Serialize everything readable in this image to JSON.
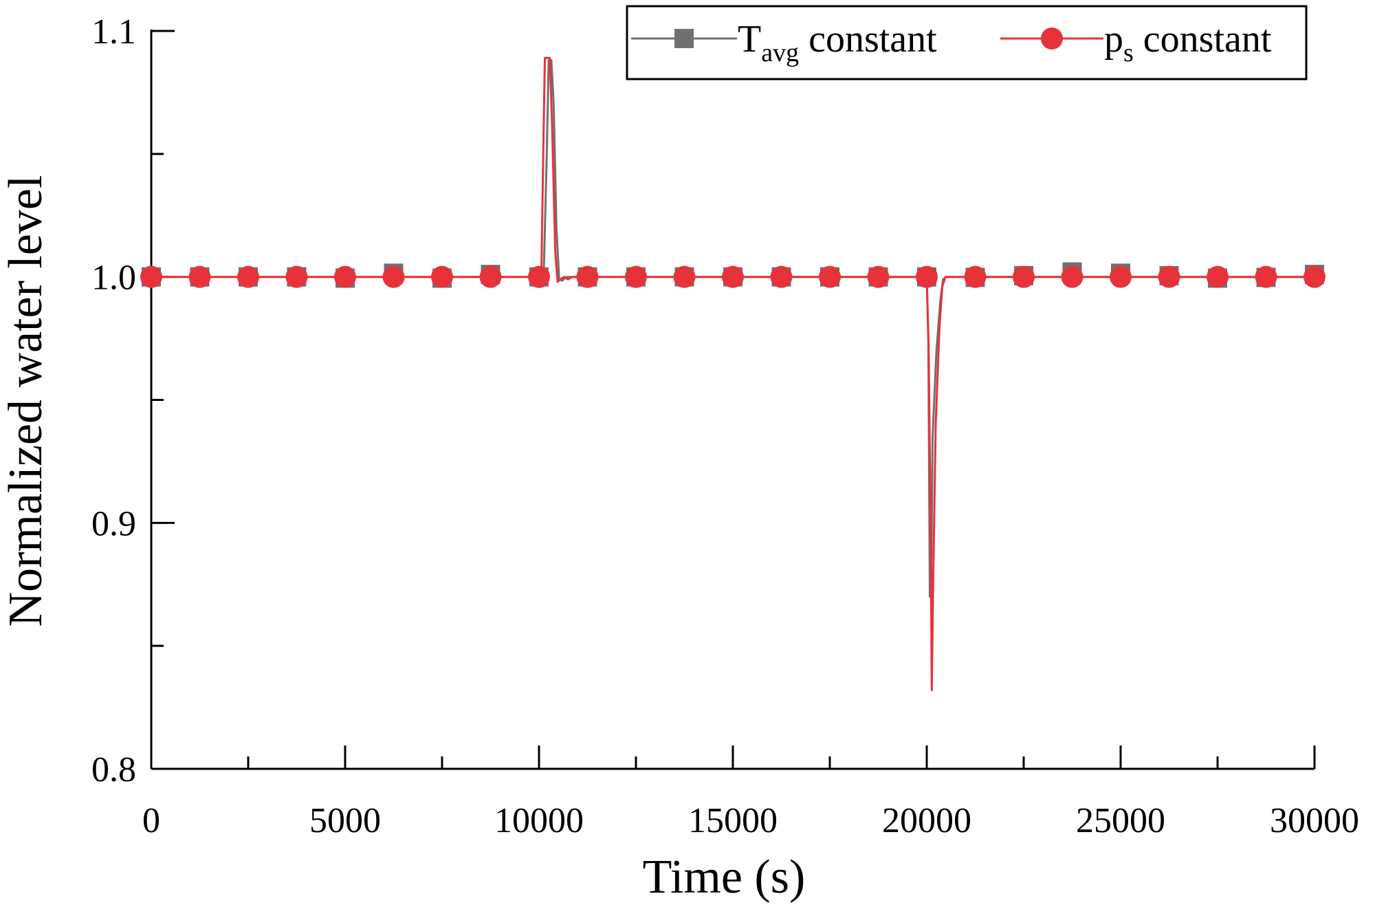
{
  "chart_data": {
    "type": "line",
    "title": "",
    "xlabel": "Time (s)",
    "ylabel": "Normalized water level",
    "xlim": [
      0,
      30000
    ],
    "ylim": [
      0.8,
      1.1
    ],
    "x_ticks": [
      0,
      5000,
      10000,
      15000,
      20000,
      25000,
      30000
    ],
    "x_tick_labels": [
      "0",
      "5000",
      "10000",
      "15000",
      "20000",
      "25000",
      "30000"
    ],
    "x_minor_ticks": [
      2500,
      7500,
      12500,
      17500,
      22500,
      27500
    ],
    "y_ticks": [
      0.8,
      0.9,
      1.0,
      1.1
    ],
    "y_tick_labels": [
      "0.8",
      "0.9",
      "1.0",
      "1.1"
    ],
    "y_minor_ticks": [
      0.85,
      0.95,
      1.05
    ],
    "grid": false,
    "legend_position": "top-right",
    "marker_x": [
      0,
      1250,
      2500,
      3750,
      5000,
      6250,
      7500,
      8750,
      10000,
      11250,
      12500,
      13750,
      15000,
      16250,
      17500,
      18750,
      20000,
      21250,
      22500,
      23750,
      25000,
      26250,
      27500,
      28750,
      30000
    ],
    "series": [
      {
        "name": "T",
        "name_sub": "avg",
        "name_suffix": " constant",
        "color": "#707070",
        "marker": "square",
        "marker_values": [
          1.0,
          1.0,
          1.0,
          1.0,
          0.9995,
          1.0015,
          0.9995,
          1.001,
          1.0,
          1.0,
          1.0,
          1.0,
          1.0,
          1.0,
          1.0,
          1.0,
          1.0,
          0.9998,
          1.0005,
          1.002,
          1.0015,
          1.0005,
          0.9995,
          0.9998,
          1.001
        ],
        "points": [
          [
            0,
            1.0
          ],
          [
            3500,
            1.0
          ],
          [
            10000,
            1.0
          ],
          [
            10020,
            0.9975
          ],
          [
            10060,
            0.999
          ],
          [
            10120,
            1.0
          ],
          [
            10200,
            1.05
          ],
          [
            10250,
            1.088
          ],
          [
            10320,
            1.088
          ],
          [
            10380,
            1.07
          ],
          [
            10450,
            1.02
          ],
          [
            10520,
            0.999
          ],
          [
            10600,
            0.9985
          ],
          [
            10700,
            1.0
          ],
          [
            10800,
            1.0
          ],
          [
            20000,
            1.0
          ],
          [
            20040,
            0.975
          ],
          [
            20080,
            0.87
          ],
          [
            20110,
            0.87
          ],
          [
            20150,
            0.935
          ],
          [
            20250,
            0.97
          ],
          [
            20350,
            0.99
          ],
          [
            20420,
            0.999
          ],
          [
            20500,
            1.0
          ],
          [
            30000,
            1.0
          ]
        ]
      },
      {
        "name": "p",
        "name_sub": "s",
        "name_suffix": " constant",
        "color": "#e8323a",
        "marker": "circle",
        "marker_values": [
          1.0,
          1.0,
          1.0,
          1.0,
          1.0,
          1.0,
          1.0,
          1.0,
          1.0,
          1.0,
          1.0,
          1.0,
          1.0,
          1.0,
          1.0,
          1.0,
          1.0,
          1.0,
          1.0,
          1.0,
          1.0,
          1.0,
          1.0,
          1.0,
          1.0
        ],
        "points": [
          [
            0,
            1.0
          ],
          [
            10000,
            1.0
          ],
          [
            10060,
            1.0
          ],
          [
            10100,
            1.04
          ],
          [
            10150,
            1.089
          ],
          [
            10280,
            1.089
          ],
          [
            10340,
            1.06
          ],
          [
            10420,
            1.01
          ],
          [
            10480,
            0.998
          ],
          [
            10550,
            0.999
          ],
          [
            10650,
            1.0
          ],
          [
            10750,
            0.999
          ],
          [
            10850,
            1.0
          ],
          [
            20000,
            1.0
          ],
          [
            20050,
            0.97
          ],
          [
            20100,
            0.9
          ],
          [
            20130,
            0.832
          ],
          [
            20160,
            0.87
          ],
          [
            20230,
            0.94
          ],
          [
            20330,
            0.98
          ],
          [
            20400,
            0.996
          ],
          [
            20480,
            1.0
          ],
          [
            30000,
            1.0
          ]
        ]
      }
    ]
  }
}
